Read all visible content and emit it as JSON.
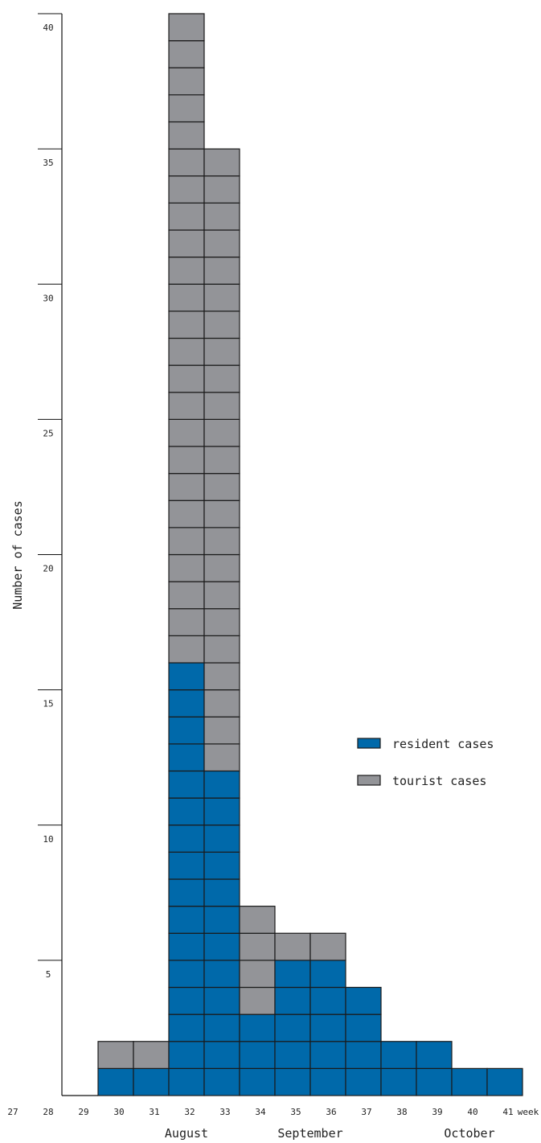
{
  "chart_data": {
    "type": "bar",
    "stacked": true,
    "ylabel": "Number of cases",
    "xlabel": "week",
    "ylim": [
      0,
      40
    ],
    "yticks": [
      5,
      10,
      15,
      20,
      25,
      30,
      35,
      40
    ],
    "weeks": [
      "27",
      "28",
      "29",
      "30",
      "31",
      "32",
      "33",
      "34",
      "35",
      "36",
      "37",
      "38",
      "39",
      "40",
      "41"
    ],
    "months": [
      {
        "label": "August",
        "center_week": 32
      },
      {
        "label": "September",
        "center_week": 35.5
      },
      {
        "label": "October",
        "center_week": 40
      }
    ],
    "series": [
      {
        "name": "resident cases",
        "color": "#0069aa",
        "values": [
          0,
          0,
          0,
          1,
          1,
          16,
          12,
          3,
          5,
          5,
          4,
          2,
          2,
          1,
          1
        ]
      },
      {
        "name": "tourist cases",
        "color": "#939498",
        "values": [
          0,
          0,
          0,
          1,
          1,
          24,
          23,
          4,
          1,
          1,
          0,
          0,
          0,
          0,
          0
        ]
      }
    ],
    "legend_position": "right"
  }
}
